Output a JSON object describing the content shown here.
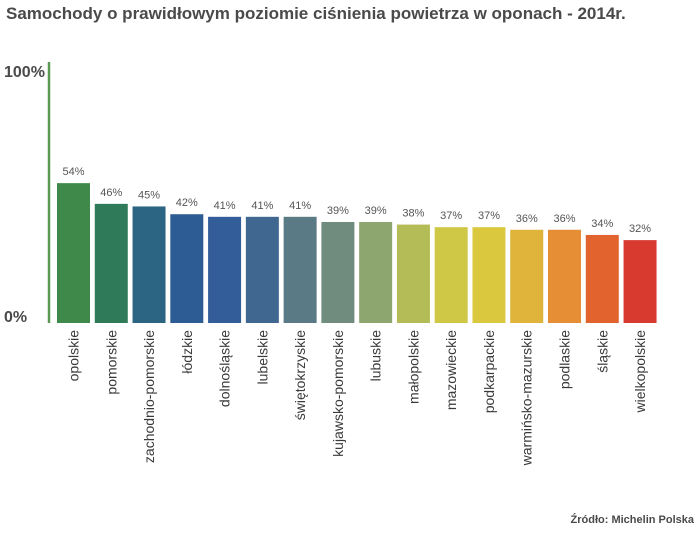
{
  "chart_data": {
    "type": "bar",
    "title": "Samochody o prawidłowym poziomie ciśnienia powietrza w oponach - 2014r.",
    "ylim": [
      0,
      100
    ],
    "yticks": [
      {
        "value": 0,
        "label": "0%"
      },
      {
        "value": 100,
        "label": "100%"
      }
    ],
    "categories": [
      "opolskie",
      "pomorskie",
      "zachodnio-pomorskie",
      "łódzkie",
      "dolnośląskie",
      "lubelskie",
      "świętokrzyskie",
      "kujawsko-pomorskie",
      "lubuskie",
      "małopolskie",
      "mazowieckie",
      "podkarpackie",
      "warmińsko-mazurskie",
      "podlaskie",
      "śląskie",
      "wielkopolskie"
    ],
    "values": [
      54,
      46,
      45,
      42,
      41,
      41,
      41,
      39,
      39,
      38,
      37,
      37,
      36,
      36,
      34,
      32
    ],
    "value_labels": [
      "54%",
      "46%",
      "45%",
      "42%",
      "41%",
      "41%",
      "41%",
      "39%",
      "39%",
      "38%",
      "37%",
      "37%",
      "36%",
      "36%",
      "34%",
      "32%"
    ],
    "bar_colors": [
      "#3f8a4a",
      "#2f7a58",
      "#2c6583",
      "#2d5c95",
      "#335d98",
      "#3f6790",
      "#5a7a85",
      "#6f8c7e",
      "#8da56f",
      "#b4bc57",
      "#cfc746",
      "#dac93e",
      "#e0b33b",
      "#e58e35",
      "#e2632e",
      "#d93a30"
    ],
    "axis_color": "#5a9a52",
    "grid": false,
    "legend": "none",
    "source": "Źródło: Michelin Polska"
  }
}
